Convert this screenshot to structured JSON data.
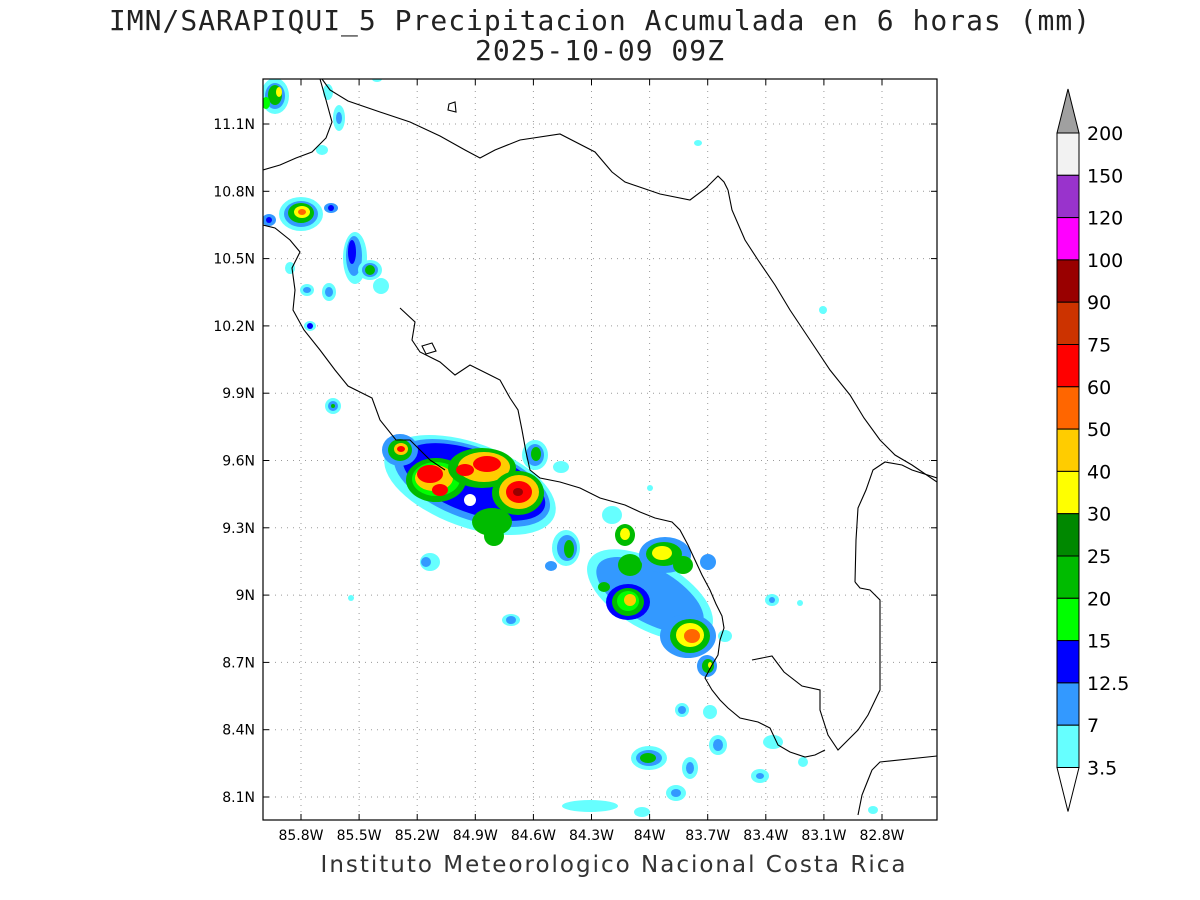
{
  "title": "IMN/SARAPIQUI_5 Precipitacion Acumulada en 6 horas (mm)",
  "subtitle": "2025-10-09 09Z",
  "footer": "Instituto Meteorologico Nacional Costa Rica",
  "map": {
    "lat_ticks": [
      "11.1N",
      "10.8N",
      "10.5N",
      "10.2N",
      "9.9N",
      "9.6N",
      "9.3N",
      "9N",
      "8.7N",
      "8.4N",
      "8.1N"
    ],
    "lon_ticks": [
      "85.8W",
      "85.5W",
      "85.2W",
      "84.9W",
      "84.6W",
      "84.3W",
      "84W",
      "83.7W",
      "83.4W",
      "83.1W",
      "82.8W"
    ],
    "grid": "dotted"
  },
  "colorbar": {
    "labels": [
      "200",
      "150",
      "120",
      "100",
      "90",
      "75",
      "60",
      "50",
      "40",
      "30",
      "25",
      "20",
      "15",
      "12.5",
      "7",
      "3.5"
    ],
    "colors": [
      "#f2f2f2",
      "#9933cc",
      "#ff00ff",
      "#990000",
      "#cc3300",
      "#ff0000",
      "#ff6600",
      "#ffcc00",
      "#ffff00",
      "#008800",
      "#00bb00",
      "#00ff00",
      "#0000ff",
      "#3399ff",
      "#66ffff"
    ],
    "top_arrow_color": "#a0a0a0",
    "bottom_arrow_color": "#ffffff"
  }
}
